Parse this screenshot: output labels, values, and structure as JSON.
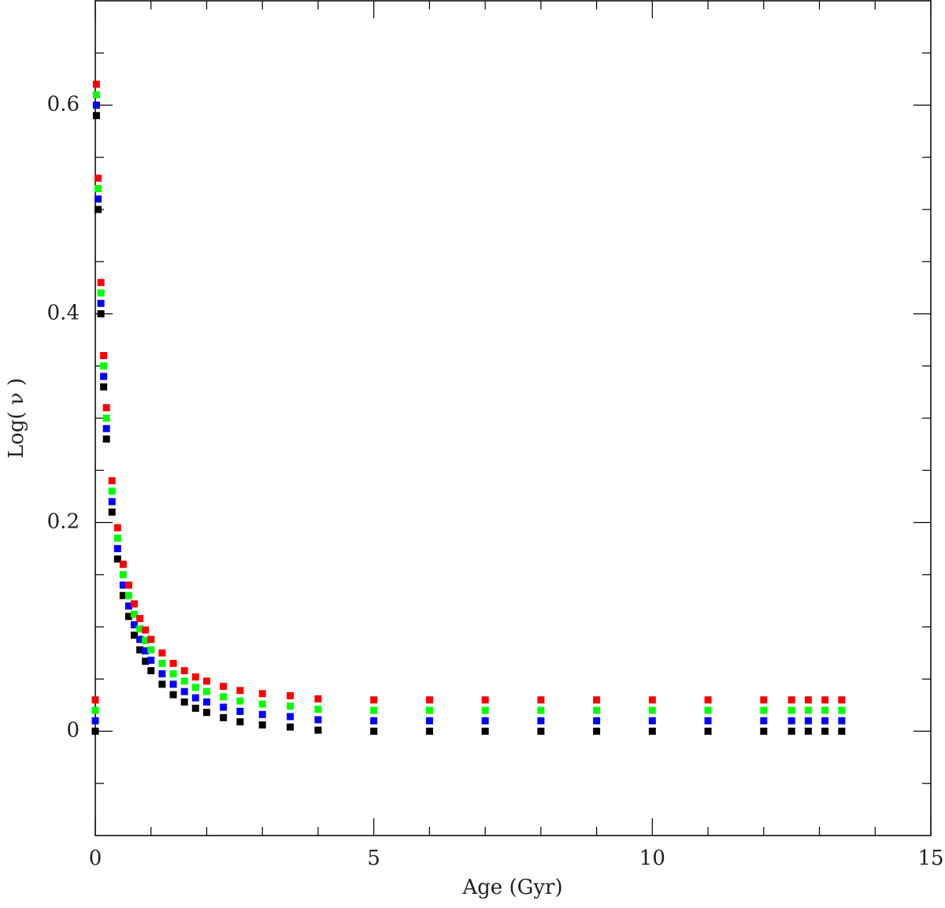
{
  "chart_data": {
    "type": "scatter",
    "xlabel": "Age (Gyr)",
    "ylabel": "Log( ν )",
    "xlim": [
      0,
      15
    ],
    "ylim": [
      -0.1,
      0.7
    ],
    "xticks": [
      0,
      5,
      10,
      15
    ],
    "yticks": [
      0,
      0.2,
      0.4,
      0.6
    ],
    "xminorticks": [
      1,
      2,
      3,
      4,
      6,
      7,
      8,
      9,
      11,
      12,
      13,
      14
    ],
    "yminorticks": [
      -0.05,
      0.05,
      0.1,
      0.15,
      0.25,
      0.3,
      0.35,
      0.45,
      0.5,
      0.55,
      0.65
    ],
    "marker": "square",
    "x": [
      0,
      0.02,
      0.05,
      0.1,
      0.15,
      0.2,
      0.3,
      0.4,
      0.5,
      0.6,
      0.7,
      0.8,
      0.9,
      1.0,
      1.2,
      1.4,
      1.6,
      1.8,
      2.0,
      2.3,
      2.6,
      3.0,
      3.5,
      4.0,
      5,
      6,
      7,
      8,
      9,
      10,
      11,
      12,
      12.5,
      12.8,
      13.1,
      13.4
    ],
    "series": [
      {
        "color": "#000000",
        "values": [
          0,
          0.59,
          0.5,
          0.4,
          0.33,
          0.28,
          0.21,
          0.165,
          0.13,
          0.11,
          0.092,
          0.078,
          0.067,
          0.058,
          0.045,
          0.035,
          0.028,
          0.022,
          0.018,
          0.013,
          0.009,
          0.006,
          0.004,
          0.001,
          0,
          0,
          0,
          0,
          0,
          0,
          0,
          0,
          0,
          0,
          0,
          0
        ]
      },
      {
        "color": "#0000ff",
        "values": [
          0.01,
          0.6,
          0.51,
          0.41,
          0.34,
          0.29,
          0.22,
          0.175,
          0.14,
          0.12,
          0.102,
          0.088,
          0.077,
          0.068,
          0.055,
          0.045,
          0.038,
          0.032,
          0.028,
          0.023,
          0.019,
          0.016,
          0.014,
          0.011,
          0.01,
          0.01,
          0.01,
          0.01,
          0.01,
          0.01,
          0.01,
          0.01,
          0.01,
          0.01,
          0.01,
          0.01
        ]
      },
      {
        "color": "#00ff00",
        "values": [
          0.02,
          0.61,
          0.52,
          0.42,
          0.35,
          0.3,
          0.23,
          0.185,
          0.15,
          0.13,
          0.112,
          0.098,
          0.087,
          0.078,
          0.065,
          0.055,
          0.048,
          0.042,
          0.038,
          0.033,
          0.029,
          0.026,
          0.024,
          0.021,
          0.02,
          0.02,
          0.02,
          0.02,
          0.02,
          0.02,
          0.02,
          0.02,
          0.02,
          0.02,
          0.02,
          0.02
        ]
      },
      {
        "color": "#ff0000",
        "values": [
          0.03,
          0.62,
          0.53,
          0.43,
          0.36,
          0.31,
          0.24,
          0.195,
          0.16,
          0.14,
          0.122,
          0.108,
          0.097,
          0.088,
          0.075,
          0.065,
          0.058,
          0.052,
          0.048,
          0.043,
          0.039,
          0.036,
          0.034,
          0.031,
          0.03,
          0.03,
          0.03,
          0.03,
          0.03,
          0.03,
          0.03,
          0.03,
          0.03,
          0.03,
          0.03,
          0.03
        ]
      }
    ]
  }
}
